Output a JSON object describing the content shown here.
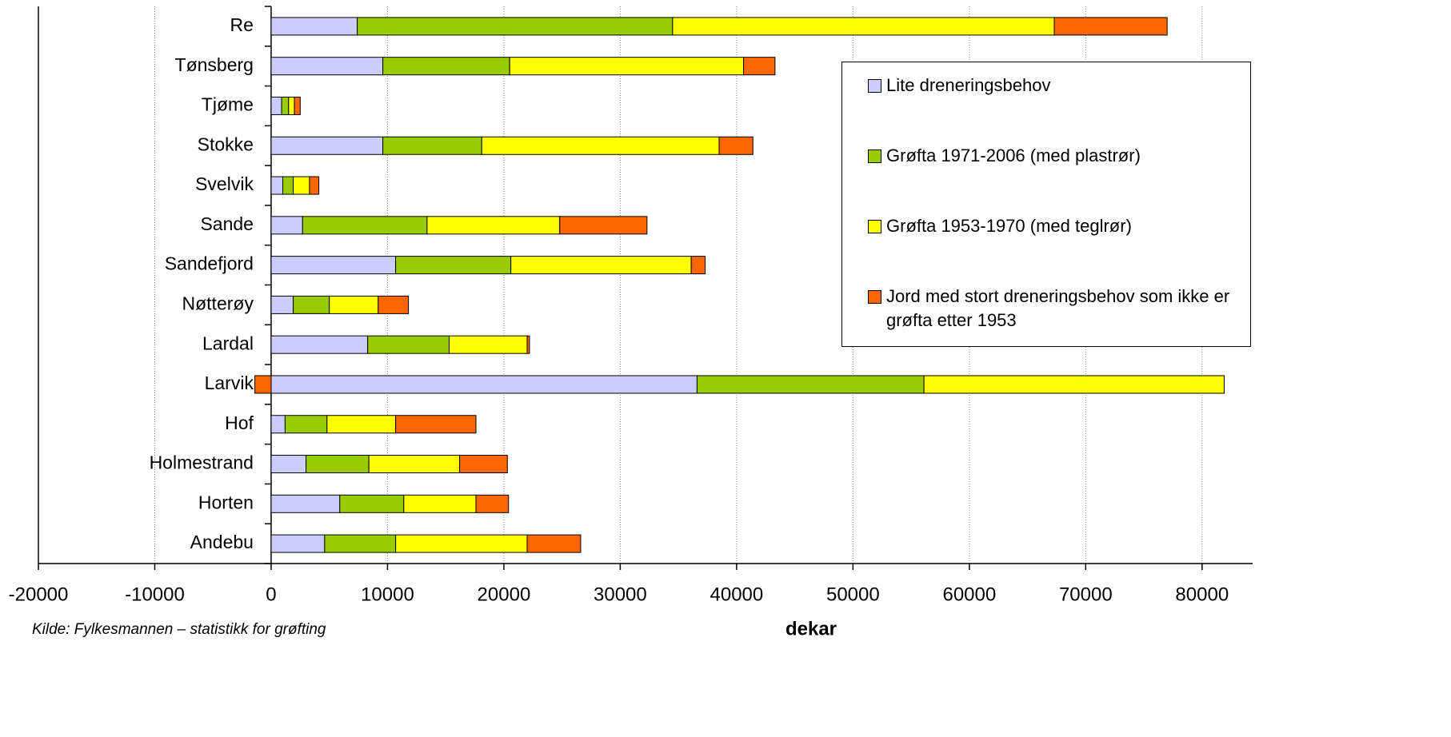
{
  "chart_data": {
    "type": "stacked-barh",
    "categories": [
      "Re",
      "Tønsberg",
      "Tjøme",
      "Stokke",
      "Svelvik",
      "Sande",
      "Sandefjord",
      "Nøtterøy",
      "Lardal",
      "Larvik",
      "Hof",
      "Holmestrand",
      "Horten",
      "Andebu"
    ],
    "series": [
      {
        "name": "Lite dreneringsbehov",
        "color": "#ccccff",
        "values": [
          7400,
          9600,
          900,
          9600,
          1000,
          2700,
          10700,
          1900,
          8300,
          36600,
          1200,
          3000,
          5900,
          4600
        ]
      },
      {
        "name": "Grøfta 1971-2006 (med plastrør)",
        "color": "#99cc00",
        "values": [
          27100,
          10900,
          600,
          8500,
          900,
          10700,
          9900,
          3100,
          7000,
          19500,
          3600,
          5400,
          5500,
          6100
        ]
      },
      {
        "name": "Grøfta 1953-1970 (med teglrør)",
        "color": "#ffff00",
        "values": [
          32800,
          20100,
          500,
          20400,
          1400,
          11400,
          15500,
          4200,
          6700,
          25800,
          5900,
          7800,
          6200,
          11300
        ]
      },
      {
        "name": "Jord med stort dreneringsbehov som ikke er grøfta etter 1953",
        "color": "#ff6600",
        "values": [
          9700,
          2700,
          500,
          2900,
          800,
          7500,
          1200,
          2600,
          200,
          -1400,
          6900,
          4100,
          2800,
          4600
        ]
      }
    ],
    "xlim": [
      -20000,
      84000
    ],
    "xticks": [
      -20000,
      -10000,
      0,
      10000,
      20000,
      30000,
      40000,
      50000,
      60000,
      70000,
      80000
    ],
    "grid": true,
    "xlabel": "dekar",
    "source": "Kilde:  Fylkesmannen – statistikk for grøfting"
  }
}
